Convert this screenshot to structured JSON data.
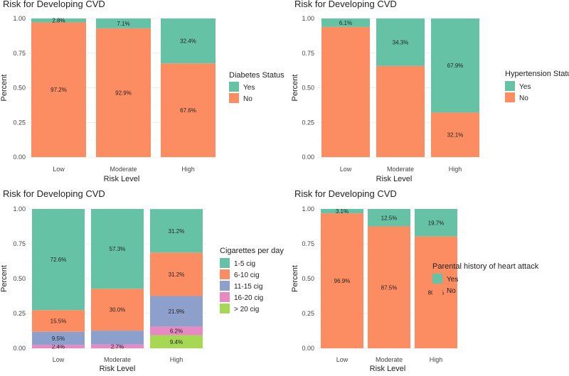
{
  "chart_data": [
    {
      "type": "bar",
      "stacked": true,
      "title": "Risk for Developing CVD",
      "xlabel": "Risk Level",
      "ylabel": "Percent",
      "ylim": [
        0,
        1
      ],
      "yticks": [
        "0.00",
        "0.25",
        "0.50",
        "0.75",
        "1.00"
      ],
      "categories": [
        "Low",
        "Moderate",
        "High"
      ],
      "legend_title": "Diabetes Status",
      "legend_position": "right",
      "series": [
        {
          "name": "Yes",
          "color": "#66c2a5",
          "values": [
            0.028,
            0.071,
            0.324
          ],
          "labels": [
            "2.8%",
            "7.1%",
            "32.4%"
          ]
        },
        {
          "name": "No",
          "color": "#fc8d62",
          "values": [
            0.972,
            0.929,
            0.676
          ],
          "labels": [
            "97.2%",
            "92.9%",
            "67.6%"
          ]
        }
      ]
    },
    {
      "type": "bar",
      "stacked": true,
      "title": "Risk for Developing CVD",
      "xlabel": "Risk Level",
      "ylabel": "Percent",
      "ylim": [
        0,
        1
      ],
      "yticks": [
        "0.00",
        "0.25",
        "0.50",
        "0.75",
        "1.00"
      ],
      "categories": [
        "Low",
        "Moderate",
        "High"
      ],
      "legend_title": "Hypertension Status",
      "legend_position": "right",
      "series": [
        {
          "name": "Yes",
          "color": "#66c2a5",
          "values": [
            0.061,
            0.343,
            0.679
          ],
          "labels": [
            "6.1%",
            "34.3%",
            "67.9%"
          ]
        },
        {
          "name": "No",
          "color": "#fc8d62",
          "values": [
            0.939,
            0.657,
            0.321
          ],
          "labels": [
            "",
            "",
            "32.1%"
          ]
        }
      ]
    },
    {
      "type": "bar",
      "stacked": true,
      "title": "Risk for Developing CVD",
      "xlabel": "Risk Level",
      "ylabel": "Percent",
      "ylim": [
        0,
        1
      ],
      "yticks": [
        "0.00",
        "0.25",
        "0.50",
        "0.75",
        "1.00"
      ],
      "categories": [
        "Low",
        "Moderate",
        "High"
      ],
      "legend_title": "Cigarettes per day",
      "legend_position": "right",
      "series": [
        {
          "name": "1-5 cig",
          "color": "#66c2a5",
          "values": [
            0.726,
            0.573,
            0.312
          ],
          "labels": [
            "72.6%",
            "57.3%",
            "31.2%"
          ]
        },
        {
          "name": "6-10 cig",
          "color": "#fc8d62",
          "values": [
            0.155,
            0.3,
            0.312
          ],
          "labels": [
            "15.5%",
            "30.0%",
            "31.2%"
          ]
        },
        {
          "name": "11-15 cig",
          "color": "#8da0cb",
          "values": [
            0.095,
            0.1,
            0.219
          ],
          "labels": [
            "9.5%",
            "",
            "21.9%"
          ]
        },
        {
          "name": "16-20 cig",
          "color": "#e78ac3",
          "values": [
            0.024,
            0.027,
            0.062
          ],
          "labels": [
            "2.4%",
            "2.7%",
            "6.2%"
          ]
        },
        {
          "name": "> 20 cig",
          "color": "#a6d854",
          "values": [
            0.0,
            0.0,
            0.094
          ],
          "labels": [
            "",
            "",
            "9.4%"
          ]
        }
      ]
    },
    {
      "type": "bar",
      "stacked": true,
      "title": "Risk for Developing CVD",
      "xlabel": "Risk Level",
      "ylabel": "Percent",
      "ylim": [
        0,
        1
      ],
      "yticks": [
        "0.00",
        "0.25",
        "0.50",
        "0.75",
        "1.00"
      ],
      "categories": [
        "Low",
        "Moderate",
        "High"
      ],
      "legend_title": "Parental history of heart attack",
      "legend_position": "right",
      "series": [
        {
          "name": "Yes",
          "color": "#66c2a5",
          "values": [
            0.031,
            0.125,
            0.197
          ],
          "labels": [
            "3.1%",
            "12.5%",
            "19.7%"
          ]
        },
        {
          "name": "No",
          "color": "#fc8d62",
          "values": [
            0.969,
            0.875,
            0.803
          ],
          "labels": [
            "96.9%",
            "87.5%",
            "80.3%"
          ]
        }
      ]
    }
  ]
}
